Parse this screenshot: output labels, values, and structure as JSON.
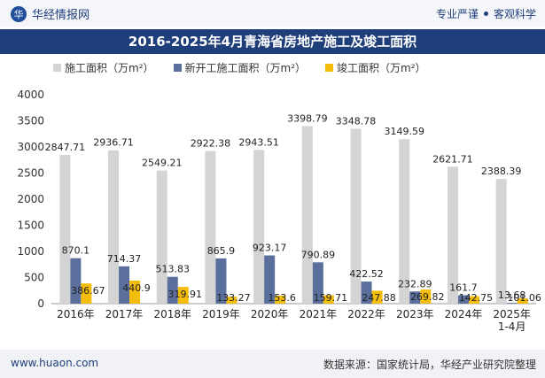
{
  "header": {
    "brand": "华经情报网",
    "tag1": "专业严谨",
    "tag2": "客观科学"
  },
  "footer": {
    "url": "www.huaon.com",
    "source": "数据来源：国家统计局，华经产业研究院整理"
  },
  "colors": {
    "series1": "#d4d4d4",
    "series2": "#5a6f9c",
    "series3": "#f4bd0a",
    "title_bg": "#1f3f7a"
  },
  "chart_data": {
    "type": "bar",
    "title": "2016-2025年4月青海省房地产施工及竣工面积",
    "categories": [
      "2016年",
      "2017年",
      "2018年",
      "2019年",
      "2020年",
      "2021年",
      "2022年",
      "2023年",
      "2024年",
      "2025年\n1-4月"
    ],
    "series": [
      {
        "name": "施工面积（万m²）",
        "values": [
          2847.71,
          2936.71,
          2549.21,
          2922.38,
          2943.51,
          3398.79,
          3348.78,
          3149.59,
          2621.71,
          2388.39
        ]
      },
      {
        "name": "新开工施工面积（万m²）",
        "values": [
          870.1,
          714.37,
          513.83,
          865.9,
          923.17,
          790.89,
          422.52,
          232.89,
          161.7,
          13.68
        ]
      },
      {
        "name": "竣工面积（万m²）",
        "values": [
          386.67,
          440.9,
          319.91,
          133.27,
          153.6,
          159.71,
          247.88,
          269.82,
          142.75,
          101.06
        ]
      }
    ],
    "yticks": [
      0,
      500,
      1000,
      1500,
      2000,
      2500,
      3000,
      3500,
      4000
    ],
    "ylim": [
      0,
      4000
    ]
  }
}
